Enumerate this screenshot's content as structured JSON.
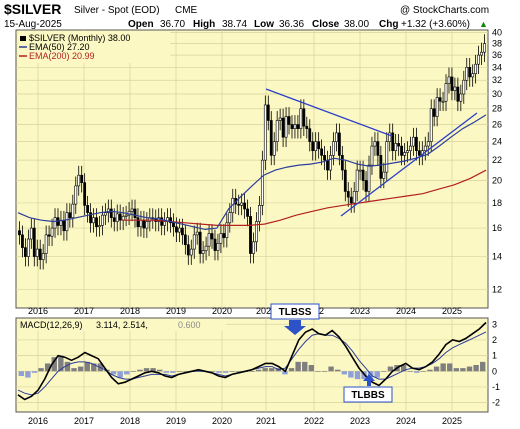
{
  "header": {
    "symbol": "$SILVER",
    "description": "Silver - Spot (EOD)",
    "exchange": "CME",
    "copyright": "@ StockCharts.com",
    "date": "15-Aug-2025",
    "open_label": "Open",
    "open": "36.70",
    "high_label": "High",
    "high": "38.74",
    "low_label": "Low",
    "low": "36.36",
    "close_label": "Close",
    "close": "38.00",
    "chg_label": "Chg",
    "chg": "+1.32 (+3.60%)",
    "up_arrow": "▲"
  },
  "legend": {
    "price": "$SILVER (Monthly) 38.00",
    "ema50": "EMA(50) 27.20",
    "ema200": "EMA(200) 20.99",
    "macd": "MACD(12,26,9)",
    "macd_values": "3.114, 2.514,",
    "macd_hist": "0.600"
  },
  "colors": {
    "panel_bg": "#fbf8c4",
    "grid": "#d7d39a",
    "candle": "#000000",
    "ema50": "#2c3e9a",
    "ema200": "#b42020",
    "trendline": "#2b3fc7",
    "annotation": "#2e52c8",
    "hist": "#7f7f7f",
    "hist_neg": "#8f9fd8"
  },
  "annotations": [
    "TLBSS",
    "TLBBS"
  ],
  "chart_data": [
    {
      "type": "candlestick",
      "title": "$SILVER Silver - Spot (EOD) CME",
      "x_ticks": [
        "2016",
        "2017",
        "2018",
        "2019",
        "2020",
        "2021",
        "2022",
        "2023",
        "2024",
        "2025"
      ],
      "y_ticks": [
        12,
        14,
        16,
        18,
        20,
        22,
        24,
        26,
        28,
        30,
        32,
        34,
        36,
        38,
        40
      ],
      "y_scale": "log",
      "ylim": [
        11,
        40.5
      ],
      "grid": true,
      "series": [
        {
          "name": "$SILVER (Monthly)",
          "values": [
            15.5,
            14.6,
            14.0,
            15.2,
            16.0,
            14.0,
            14.5,
            13.8,
            14.2,
            15.5,
            15.4,
            16.0,
            16.8,
            16.2,
            16.6,
            15.8,
            17.2,
            16.8,
            17.9,
            19.5,
            20.5,
            19.8,
            17.8,
            17.2,
            16.4,
            16.8,
            16.1,
            16.2,
            17.0,
            17.2,
            17.5,
            16.8,
            16.5,
            17.1,
            16.6,
            16.9,
            17.0,
            17.3,
            17.5,
            16.8,
            16.1,
            16.6,
            16.0,
            16.5,
            16.8,
            16.7,
            16.5,
            16.8,
            16.2,
            16.5,
            16.8,
            16.4,
            16.1,
            15.7,
            16.0,
            15.5,
            14.8,
            14.1,
            14.5,
            15.5,
            15.7,
            14.2,
            14.4,
            14.7,
            15.6,
            15.2,
            14.4,
            14.9,
            15.6,
            15.3,
            16.4,
            17.2,
            18.4,
            17.9,
            17.8,
            18.0,
            17.5,
            16.9,
            14.2,
            15.0,
            16.5,
            17.8,
            22.0,
            28.5,
            26.5,
            22.5,
            24.0,
            26.5,
            26.8,
            24.5,
            27.0,
            26.0,
            25.5,
            26.0,
            25.5,
            28.0,
            25.8,
            25.5,
            24.0,
            23.0,
            24.0,
            23.2,
            22.5,
            22.0,
            21.0,
            22.5,
            24.0,
            25.0,
            22.5,
            21.0,
            19.0,
            18.5,
            18.0,
            19.0,
            21.0,
            21.0,
            20.0,
            19.0,
            21.5,
            23.5,
            24.0,
            22.5,
            20.2,
            20.8,
            24.0,
            25.0,
            23.0,
            23.8,
            23.5,
            22.5,
            22.8,
            23.0,
            23.5,
            24.5,
            23.0,
            22.5,
            23.0,
            23.5,
            24.0,
            28.0,
            27.0,
            29.5,
            29.0,
            29.0,
            31.5,
            32.5,
            30.5,
            31.0,
            29.0,
            30.0,
            32.0,
            34.0,
            32.5,
            33.0,
            34.5,
            36.0,
            36.5,
            38.0
          ]
        },
        {
          "name": "EMA(50)",
          "values": [
            17.2,
            16.8,
            16.6,
            16.5,
            16.6,
            16.8,
            17.0,
            17.2,
            17.3,
            17.2,
            17.0,
            16.8,
            16.7,
            16.5,
            16.3,
            16.1,
            15.9,
            16.0,
            17.5,
            18.5,
            19.5,
            20.5,
            21.0,
            21.3,
            21.5,
            21.6,
            21.8,
            22.2,
            22.0,
            21.6,
            21.4,
            21.5,
            21.7,
            21.9,
            22.2,
            22.6,
            23.5,
            24.5,
            25.5,
            26.3,
            27.2
          ]
        },
        {
          "name": "EMA(200)",
          "values": [
            16.6,
            16.6,
            16.6,
            16.5,
            16.4,
            16.3,
            16.2,
            16.2,
            16.2,
            16.3,
            16.6,
            17.0,
            17.3,
            17.6,
            17.8,
            18.0,
            18.2,
            18.4,
            18.6,
            18.8,
            19.2,
            19.6,
            20.2,
            20.99
          ]
        }
      ]
    },
    {
      "type": "line",
      "title": "MACD(12,26,9) 3.114, 2.514, 0.600",
      "x_ticks": [
        "2016",
        "2017",
        "2018",
        "2019",
        "2020",
        "2021",
        "2022",
        "2023",
        "2024",
        "2025"
      ],
      "y_ticks": [
        -2,
        -1,
        0,
        1,
        2,
        3
      ],
      "ylim": [
        -2.6,
        3.4
      ],
      "grid": true,
      "series": [
        {
          "name": "MACD",
          "values": [
            -1.5,
            -1.8,
            -1.6,
            -1.2,
            -0.5,
            0.4,
            1.0,
            0.9,
            0.7,
            0.9,
            1.2,
            1.0,
            0.8,
            0.2,
            -0.4,
            -0.8,
            -0.7,
            -0.5,
            -0.3,
            -0.1,
            0.0,
            -0.1,
            -0.3,
            -0.4,
            -0.2,
            -0.1,
            0.0,
            0.1,
            0.0,
            -0.1,
            -0.3,
            -0.4,
            -0.2,
            -0.1,
            0.0,
            0.1,
            0.3,
            0.5,
            0.5,
            0.3,
            0.0,
            1.0,
            2.0,
            2.5,
            2.7,
            2.4,
            2.3,
            2.6,
            2.2,
            1.6,
            0.9,
            0.2,
            -0.3,
            -0.7,
            -0.9,
            -0.5,
            0.0,
            0.3,
            0.5,
            0.2,
            0.1,
            0.3,
            0.6,
            1.1,
            1.7,
            2.0,
            1.9,
            2.1,
            2.4,
            2.7,
            3.114
          ]
        },
        {
          "name": "Signal",
          "values": [
            -1.2,
            -1.4,
            -1.5,
            -1.4,
            -1.0,
            -0.5,
            0.0,
            0.3,
            0.5,
            0.6,
            0.6,
            0.5,
            0.3,
            0.1,
            -0.2,
            -0.4,
            -0.5,
            -0.5,
            -0.4,
            -0.3,
            -0.2,
            -0.2,
            -0.2,
            -0.3,
            -0.2,
            -0.1,
            0.0,
            0.0,
            0.0,
            -0.1,
            -0.2,
            -0.3,
            -0.2,
            -0.1,
            0.0,
            0.1,
            0.2,
            0.3,
            0.3,
            0.1,
            0.2,
            0.8,
            1.4,
            1.9,
            2.3,
            2.4,
            2.3,
            2.3,
            2.1,
            1.8,
            1.3,
            0.7,
            0.2,
            -0.3,
            -0.5,
            -0.5,
            -0.3,
            -0.1,
            0.1,
            0.2,
            0.2,
            0.3,
            0.5,
            0.8,
            1.2,
            1.5,
            1.7,
            1.9,
            2.1,
            2.3,
            2.514
          ]
        },
        {
          "name": "Histogram",
          "values": [
            -0.3,
            -0.4,
            -0.1,
            0.2,
            0.5,
            0.9,
            1.0,
            0.6,
            0.2,
            0.3,
            0.6,
            0.5,
            0.5,
            0.1,
            -0.2,
            -0.4,
            -0.2,
            0.0,
            0.1,
            0.2,
            0.2,
            0.1,
            -0.1,
            -0.1,
            0.0,
            0.0,
            0.0,
            0.1,
            0.0,
            0.0,
            -0.1,
            -0.1,
            0.0,
            0.0,
            0.0,
            0.0,
            0.1,
            0.2,
            0.2,
            0.2,
            -0.2,
            0.2,
            0.6,
            0.6,
            0.4,
            0.0,
            0.0,
            0.3,
            0.1,
            -0.2,
            -0.4,
            -0.5,
            -0.5,
            -0.4,
            -0.4,
            0.0,
            0.3,
            0.4,
            0.4,
            0.0,
            -0.1,
            0.0,
            0.1,
            0.3,
            0.5,
            0.5,
            0.2,
            0.2,
            0.3,
            0.4,
            0.6
          ]
        }
      ]
    }
  ]
}
